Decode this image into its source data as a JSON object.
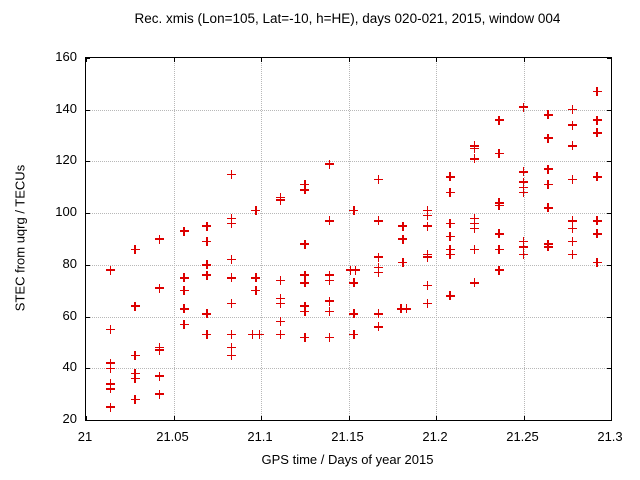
{
  "title": "Rec. xmis (Lon=105, Lat=-10, h=HE), days 020-021, 2015, window 004",
  "chart_data": {
    "type": "scatter",
    "title": "Rec. xmis (Lon=105, Lat=-10, h=HE), days 020-021, 2015, window 004",
    "xlabel": "GPS time / Days of year 2015",
    "ylabel": "STEC from uqrg / TECUs",
    "xlim": [
      21,
      21.3
    ],
    "ylim": [
      20,
      160
    ],
    "xticks": {
      "values": [
        21,
        21.05,
        21.1,
        21.15,
        21.2,
        21.25,
        21.3
      ],
      "labels": [
        "21",
        "21.05",
        "21.1",
        "21.15",
        "21.2",
        "21.25",
        "21.3"
      ]
    },
    "yticks": {
      "values": [
        20,
        40,
        60,
        80,
        100,
        120,
        140,
        160
      ],
      "labels": [
        "20",
        "40",
        "60",
        "80",
        "100",
        "120",
        "140",
        "160"
      ]
    },
    "grid": "dotted",
    "legend": "none",
    "marker": "plus",
    "marker_color": "#dd0000",
    "grid_color": "#b8b8b8",
    "series": [
      {
        "name": "STEC",
        "points": [
          [
            21.014,
            78
          ],
          [
            21.014,
            55
          ],
          [
            21.014,
            42
          ],
          [
            21.014,
            40
          ],
          [
            21.014,
            34
          ],
          [
            21.014,
            32
          ],
          [
            21.014,
            25
          ],
          [
            21.028,
            86
          ],
          [
            21.028,
            64
          ],
          [
            21.028,
            45
          ],
          [
            21.028,
            38
          ],
          [
            21.028,
            36
          ],
          [
            21.028,
            28
          ],
          [
            21.042,
            90
          ],
          [
            21.042,
            71
          ],
          [
            21.042,
            48
          ],
          [
            21.042,
            47
          ],
          [
            21.042,
            37
          ],
          [
            21.042,
            30
          ],
          [
            21.056,
            93
          ],
          [
            21.056,
            75
          ],
          [
            21.056,
            70
          ],
          [
            21.056,
            63
          ],
          [
            21.056,
            57
          ],
          [
            21.069,
            95
          ],
          [
            21.069,
            89
          ],
          [
            21.069,
            80
          ],
          [
            21.069,
            76
          ],
          [
            21.069,
            61
          ],
          [
            21.069,
            53
          ],
          [
            21.083,
            115
          ],
          [
            21.083,
            98
          ],
          [
            21.083,
            96
          ],
          [
            21.083,
            82
          ],
          [
            21.083,
            75
          ],
          [
            21.083,
            65
          ],
          [
            21.083,
            53
          ],
          [
            21.083,
            48
          ],
          [
            21.083,
            45
          ],
          [
            21.097,
            101
          ],
          [
            21.097,
            75
          ],
          [
            21.097,
            70
          ],
          [
            21.095,
            53
          ],
          [
            21.099,
            53
          ],
          [
            21.111,
            106
          ],
          [
            21.111,
            105
          ],
          [
            21.111,
            74
          ],
          [
            21.111,
            67
          ],
          [
            21.111,
            65
          ],
          [
            21.111,
            58
          ],
          [
            21.111,
            53
          ],
          [
            21.125,
            111
          ],
          [
            21.125,
            109
          ],
          [
            21.125,
            88
          ],
          [
            21.125,
            76
          ],
          [
            21.125,
            73
          ],
          [
            21.125,
            64
          ],
          [
            21.125,
            62
          ],
          [
            21.125,
            52
          ],
          [
            21.139,
            119
          ],
          [
            21.139,
            97
          ],
          [
            21.139,
            76
          ],
          [
            21.139,
            74
          ],
          [
            21.139,
            66
          ],
          [
            21.139,
            62
          ],
          [
            21.139,
            52
          ],
          [
            21.153,
            101
          ],
          [
            21.151,
            78
          ],
          [
            21.154,
            78
          ],
          [
            21.153,
            73
          ],
          [
            21.153,
            61
          ],
          [
            21.153,
            53
          ],
          [
            21.167,
            113
          ],
          [
            21.167,
            97
          ],
          [
            21.167,
            83
          ],
          [
            21.167,
            79
          ],
          [
            21.167,
            77
          ],
          [
            21.167,
            61
          ],
          [
            21.167,
            56
          ],
          [
            21.181,
            95
          ],
          [
            21.181,
            90
          ],
          [
            21.181,
            81
          ],
          [
            21.18,
            63
          ],
          [
            21.183,
            63
          ],
          [
            21.195,
            101
          ],
          [
            21.195,
            99
          ],
          [
            21.195,
            95
          ],
          [
            21.195,
            84
          ],
          [
            21.195,
            83
          ],
          [
            21.195,
            72
          ],
          [
            21.195,
            65
          ],
          [
            21.208,
            114
          ],
          [
            21.208,
            108
          ],
          [
            21.208,
            96
          ],
          [
            21.208,
            91
          ],
          [
            21.208,
            86
          ],
          [
            21.208,
            84
          ],
          [
            21.208,
            68
          ],
          [
            21.222,
            126
          ],
          [
            21.222,
            125
          ],
          [
            21.222,
            121
          ],
          [
            21.222,
            98
          ],
          [
            21.222,
            96
          ],
          [
            21.222,
            94
          ],
          [
            21.222,
            86
          ],
          [
            21.222,
            73
          ],
          [
            21.236,
            136
          ],
          [
            21.236,
            123
          ],
          [
            21.236,
            104
          ],
          [
            21.236,
            103
          ],
          [
            21.236,
            92
          ],
          [
            21.236,
            86
          ],
          [
            21.236,
            78
          ],
          [
            21.25,
            141
          ],
          [
            21.25,
            116
          ],
          [
            21.25,
            112
          ],
          [
            21.25,
            110
          ],
          [
            21.25,
            108
          ],
          [
            21.25,
            89
          ],
          [
            21.25,
            87
          ],
          [
            21.25,
            84
          ],
          [
            21.264,
            138
          ],
          [
            21.264,
            129
          ],
          [
            21.264,
            117
          ],
          [
            21.264,
            111
          ],
          [
            21.264,
            102
          ],
          [
            21.264,
            88
          ],
          [
            21.264,
            87
          ],
          [
            21.278,
            140
          ],
          [
            21.278,
            134
          ],
          [
            21.278,
            126
          ],
          [
            21.278,
            113
          ],
          [
            21.278,
            97
          ],
          [
            21.278,
            94
          ],
          [
            21.278,
            89
          ],
          [
            21.278,
            84
          ],
          [
            21.292,
            147
          ],
          [
            21.292,
            136
          ],
          [
            21.292,
            131
          ],
          [
            21.292,
            114
          ],
          [
            21.292,
            97
          ],
          [
            21.292,
            92
          ],
          [
            21.292,
            81
          ]
        ]
      }
    ]
  }
}
